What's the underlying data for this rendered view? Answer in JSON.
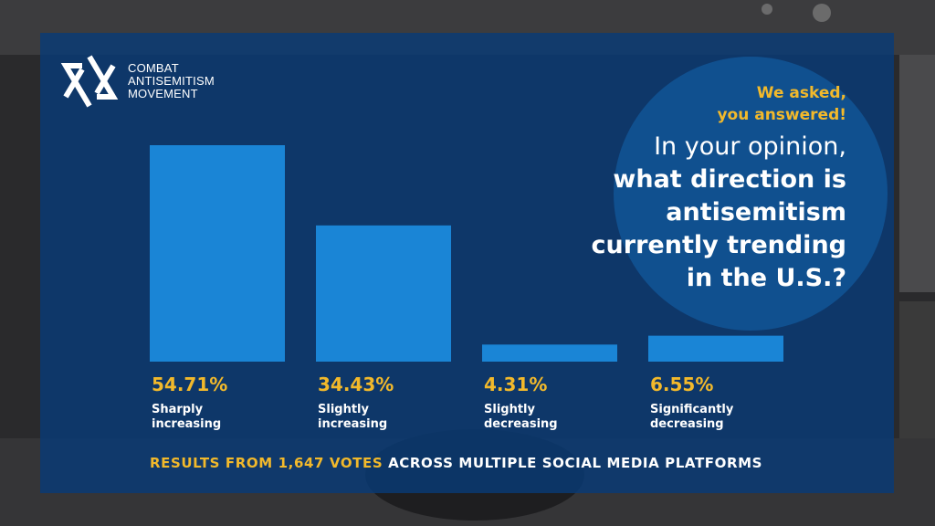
{
  "logo": {
    "lines": [
      "COMBAT",
      "ANTISEMITISM",
      "MOVEMENT"
    ],
    "icon": "star-of-david-icon"
  },
  "tagline": [
    "We asked,",
    "you answered!"
  ],
  "question": {
    "lead": "In your opinion,",
    "bold_lines": [
      "what direction is",
      "antisemitism",
      "currently trending",
      "in the U.S.?"
    ]
  },
  "colors": {
    "panel": "#083a76",
    "bar": "#1a85d6",
    "accent": "#f2b92b",
    "text": "#ffffff"
  },
  "chart_data": {
    "type": "bar",
    "categories": [
      "Sharply increasing",
      "Slightly increasing",
      "Slightly decreasing",
      "Significantly decreasing"
    ],
    "category_lines": [
      [
        "Sharply",
        "increasing"
      ],
      [
        "Slightly",
        "increasing"
      ],
      [
        "Slightly",
        "decreasing"
      ],
      [
        "Significantly",
        "decreasing"
      ]
    ],
    "values": [
      54.71,
      34.43,
      4.31,
      6.55
    ],
    "value_labels": [
      "54.71%",
      "34.43%",
      "4.31%",
      "6.55%"
    ],
    "ylim": [
      0,
      54.71
    ],
    "grid": false,
    "legend": "none"
  },
  "footer": {
    "highlight": "RESULTS FROM 1,647 VOTES",
    "rest": " ACROSS MULTIPLE SOCIAL MEDIA PLATFORMS"
  }
}
